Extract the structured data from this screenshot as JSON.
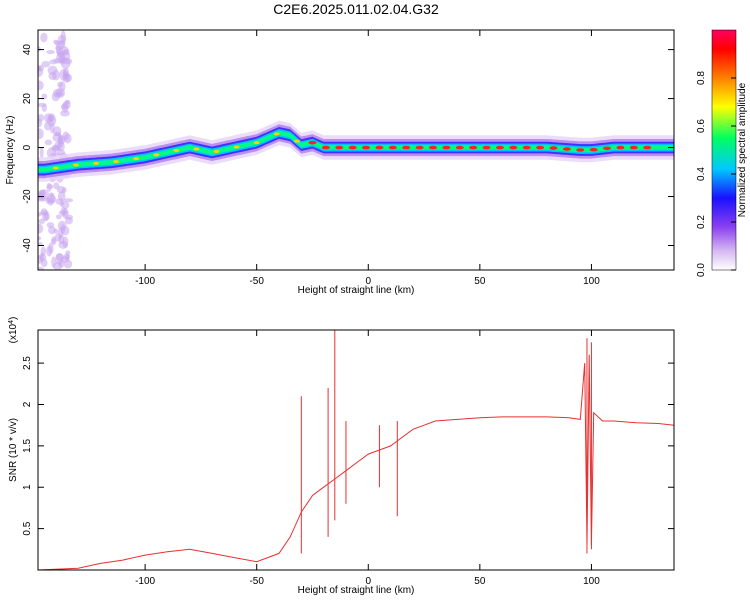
{
  "title": "C2E6.2025.011.02.04.G32",
  "colors": {
    "axis": "#000000",
    "snr_line": "#e83030"
  },
  "chart_data": [
    {
      "type": "heatmap",
      "name": "spectrogram",
      "xlabel": "Height of straight line (km)",
      "ylabel": "Frequency (Hz)",
      "xlim": [
        -148,
        137
      ],
      "ylim": [
        -50,
        48
      ],
      "xticks": [
        -100,
        -50,
        0,
        50,
        100
      ],
      "yticks": [
        -40,
        -20,
        0,
        20,
        40
      ],
      "colorbar": {
        "label": "Normalized spectral amplitude",
        "range": [
          0,
          1
        ],
        "ticks": [
          0.0,
          0.2,
          0.4,
          0.6,
          0.8
        ],
        "tick_labels": [
          "0.0",
          "0.2",
          "0.4",
          "0.6",
          "0.8"
        ],
        "colors": [
          "#ffffff",
          "#d6b8f2",
          "#8a3ff0",
          "#1a10ff",
          "#00c8ff",
          "#00ff60",
          "#ffff00",
          "#ff8000",
          "#ff0000",
          "#ff0060"
        ]
      },
      "ridge": {
        "x": [
          -145,
          -130,
          -115,
          -100,
          -90,
          -80,
          -70,
          -60,
          -50,
          -40,
          -35,
          -30,
          -25,
          -20,
          -10,
          0,
          20,
          50,
          80,
          95,
          100,
          110,
          135
        ],
        "freq_hz": [
          -9,
          -7,
          -6,
          -4,
          -2,
          0,
          -2,
          0,
          2,
          6,
          5,
          1,
          2,
          0,
          0,
          0,
          0,
          0,
          0,
          -1,
          -1,
          0,
          0
        ]
      }
    },
    {
      "type": "line",
      "name": "snr",
      "xlabel": "Height of straight line (km)",
      "ylabel": "SNR (10 * v/v)",
      "yscale_label": "(x10",
      "yscale_exp": "4",
      "xlim": [
        -148,
        137
      ],
      "ylim": [
        0,
        2.9
      ],
      "xticks": [
        -100,
        -50,
        0,
        50,
        100
      ],
      "yticks": [
        0.5,
        1.0,
        1.5,
        2.0,
        2.5
      ],
      "series": [
        {
          "x": [
            -148,
            -130,
            -120,
            -110,
            -100,
            -90,
            -80,
            -70,
            -60,
            -50,
            -40,
            -35,
            -30,
            -25,
            -20,
            -15,
            -10,
            -5,
            0,
            5,
            10,
            15,
            20,
            25,
            30,
            40,
            50,
            60,
            70,
            80,
            90,
            95,
            97,
            98,
            99,
            100,
            101,
            105,
            110,
            120,
            130,
            137
          ],
          "values": [
            0.0,
            0.02,
            0.08,
            0.12,
            0.18,
            0.22,
            0.25,
            0.2,
            0.15,
            0.1,
            0.2,
            0.4,
            0.7,
            0.9,
            1.0,
            1.1,
            1.2,
            1.3,
            1.4,
            1.45,
            1.5,
            1.6,
            1.7,
            1.75,
            1.8,
            1.82,
            1.84,
            1.85,
            1.85,
            1.85,
            1.84,
            1.82,
            2.5,
            0.3,
            2.6,
            0.3,
            1.9,
            1.8,
            1.8,
            1.78,
            1.77,
            1.75
          ]
        }
      ],
      "spikes": [
        {
          "x": -30,
          "values": [
            0.2,
            2.1
          ]
        },
        {
          "x": -18,
          "values": [
            0.4,
            2.2
          ]
        },
        {
          "x": -15,
          "values": [
            0.6,
            2.9
          ]
        },
        {
          "x": -10,
          "values": [
            0.8,
            1.8
          ]
        },
        {
          "x": 5,
          "values": [
            1.0,
            1.75
          ]
        },
        {
          "x": 13,
          "values": [
            0.65,
            1.8
          ]
        },
        {
          "x": 98,
          "values": [
            0.2,
            2.8
          ]
        },
        {
          "x": 100,
          "values": [
            0.25,
            2.75
          ]
        }
      ]
    }
  ]
}
